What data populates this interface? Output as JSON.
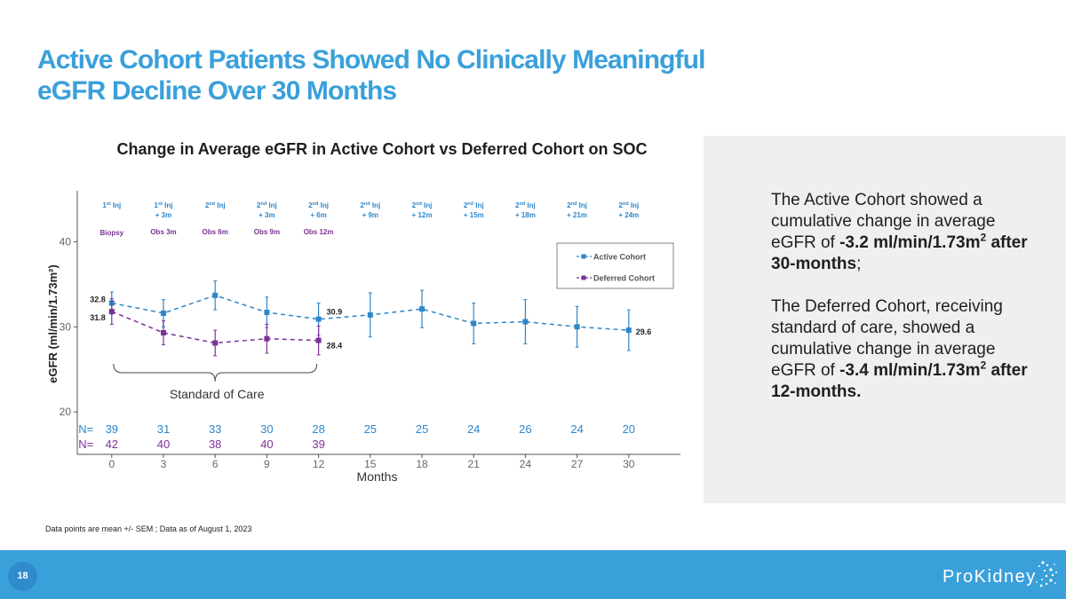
{
  "slide": {
    "title_line1": "Active Cohort Patients Showed No Clinically Meaningful",
    "title_line2": "eGFR Decline Over 30 Months",
    "page_number": "18",
    "footnote": "Data points are mean +/- SEM ; Data as of August 1, 2023",
    "logo_text": "ProKidney"
  },
  "side_panel": {
    "para1_text": "The Active Cohort showed a cumulative change in average eGFR of ",
    "para1_value": "-3.2 ml/min/1.73m",
    "para1_sup": "2",
    "para1_tail": "after 30-months",
    "para1_end": ";",
    "para2_text": "The Deferred Cohort, receiving standard of care, showed a cumulative change in average eGFR of ",
    "para2_value": "-3.4  ml/min/1.73m",
    "para2_sup": "2",
    "para2_tail": "after 12-months."
  },
  "colors": {
    "accent": "#3aa0da",
    "active": "#2e86c9",
    "deferred": "#7b3296"
  },
  "chart_data": {
    "type": "line",
    "title": "Change in Average eGFR in Active Cohort vs Deferred Cohort on SOC",
    "xlabel": "Months",
    "ylabel": "eGFR (ml/min/1.73m²)",
    "xlim": [
      -2,
      33
    ],
    "ylim": [
      15,
      46
    ],
    "xticks": [
      0,
      3,
      6,
      9,
      12,
      15,
      18,
      21,
      24,
      27,
      30
    ],
    "yticks": [
      20,
      30,
      40
    ],
    "legend_position": "top-right",
    "series": [
      {
        "name": "Active Cohort",
        "color": "#2e86c9",
        "x": [
          0,
          3,
          6,
          9,
          12,
          15,
          18,
          21,
          24,
          27,
          30
        ],
        "y": [
          32.8,
          31.6,
          33.7,
          31.7,
          30.9,
          31.4,
          32.1,
          30.4,
          30.6,
          30.0,
          29.6
        ],
        "err": [
          1.3,
          1.6,
          1.7,
          1.8,
          1.9,
          2.6,
          2.2,
          2.4,
          2.6,
          2.4,
          2.4
        ],
        "n": [
          "39",
          "31",
          "33",
          "30",
          "28",
          "25",
          "25",
          "24",
          "26",
          "24",
          "20"
        ]
      },
      {
        "name": "Deferred Cohort",
        "color": "#7b3296",
        "x": [
          0,
          3,
          6,
          9,
          12
        ],
        "y": [
          31.8,
          29.3,
          28.1,
          28.6,
          28.4
        ],
        "err": [
          1.5,
          1.4,
          1.5,
          1.7,
          1.7
        ],
        "n": [
          "42",
          "40",
          "38",
          "40",
          "39"
        ]
      }
    ],
    "data_labels": [
      {
        "x": 0,
        "y": 32.8,
        "text": "32.8",
        "side": "left"
      },
      {
        "x": 0,
        "y": 31.8,
        "text": "31.8",
        "side": "left-below"
      },
      {
        "x": 12,
        "y": 30.9,
        "text": "30.9",
        "side": "right-above"
      },
      {
        "x": 12,
        "y": 28.4,
        "text": "28.4",
        "side": "right-below"
      },
      {
        "x": 30,
        "y": 29.6,
        "text": "29.6",
        "side": "right"
      }
    ],
    "injections": [
      {
        "x": 0,
        "line1_base": "1",
        "line1_sup": "st",
        "line1_tail": " Inj",
        "line2": ""
      },
      {
        "x": 3,
        "line1_base": "1",
        "line1_sup": "st",
        "line1_tail": " Inj",
        "line2": "+ 3m"
      },
      {
        "x": 6,
        "line1_base": "2",
        "line1_sup": "nd",
        "line1_tail": " Inj",
        "line2": ""
      },
      {
        "x": 9,
        "line1_base": "2",
        "line1_sup": "nd",
        "line1_tail": " Inj",
        "line2": "+ 3m"
      },
      {
        "x": 12,
        "line1_base": "2",
        "line1_sup": "nd",
        "line1_tail": " Inj",
        "line2": "+ 6m"
      },
      {
        "x": 15,
        "line1_base": "2",
        "line1_sup": "nd",
        "line1_tail": " Inj",
        "line2": "+ 9m"
      },
      {
        "x": 18,
        "line1_base": "2",
        "line1_sup": "nd",
        "line1_tail": " Inj",
        "line2": "+ 12m"
      },
      {
        "x": 21,
        "line1_base": "2",
        "line1_sup": "nd",
        "line1_tail": " Inj",
        "line2": "+ 15m"
      },
      {
        "x": 24,
        "line1_base": "2",
        "line1_sup": "nd",
        "line1_tail": " Inj",
        "line2": "+ 18m"
      },
      {
        "x": 27,
        "line1_base": "2",
        "line1_sup": "nd",
        "line1_tail": " Inj",
        "line2": "+ 21m"
      },
      {
        "x": 30,
        "line1_base": "2",
        "line1_sup": "nd",
        "line1_tail": " Inj",
        "line2": "+ 24m"
      }
    ],
    "observations": [
      {
        "x": 0,
        "text": "Biopsy"
      },
      {
        "x": 3,
        "text": "Obs 3m"
      },
      {
        "x": 6,
        "text": "Obs 6m"
      },
      {
        "x": 9,
        "text": "Obs 9m"
      },
      {
        "x": 12,
        "text": "Obs 12m"
      }
    ],
    "n_label": "N=",
    "bracket": {
      "x_start": 0,
      "x_end": 12,
      "text": "Standard of Care"
    }
  }
}
